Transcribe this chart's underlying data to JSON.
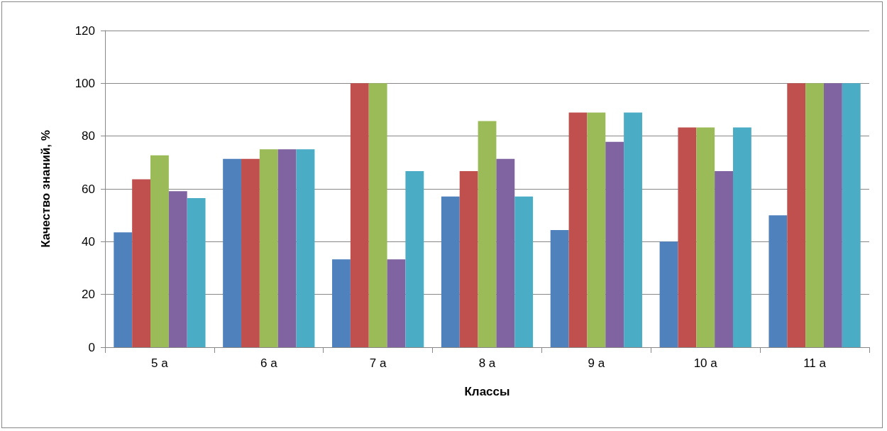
{
  "chart_data": {
    "type": "bar",
    "xlabel": "Классы",
    "ylabel": "Качество знаний, %",
    "categories": [
      "5 а",
      "6 а",
      "7 а",
      "8 а",
      "9 а",
      "10 а",
      "11 а"
    ],
    "series": [
      {
        "color": "#4f81bd",
        "values": [
          43.5,
          71.4,
          33.3,
          57.1,
          44.4,
          40,
          50
        ]
      },
      {
        "color": "#c0504d",
        "values": [
          63.6,
          71.4,
          100,
          66.7,
          88.9,
          83.3,
          100
        ]
      },
      {
        "color": "#9bbb59",
        "values": [
          72.7,
          75,
          100,
          85.7,
          88.9,
          83.3,
          100
        ]
      },
      {
        "color": "#8064a2",
        "values": [
          59.1,
          75,
          33.3,
          71.4,
          77.8,
          66.7,
          100
        ]
      },
      {
        "color": "#4bacc6",
        "values": [
          56.5,
          75,
          66.7,
          57.1,
          88.9,
          83.3,
          100
        ]
      }
    ],
    "ylim": [
      0,
      120
    ],
    "yticks": [
      0,
      20,
      40,
      60,
      80,
      100,
      120
    ],
    "grid": "y"
  }
}
